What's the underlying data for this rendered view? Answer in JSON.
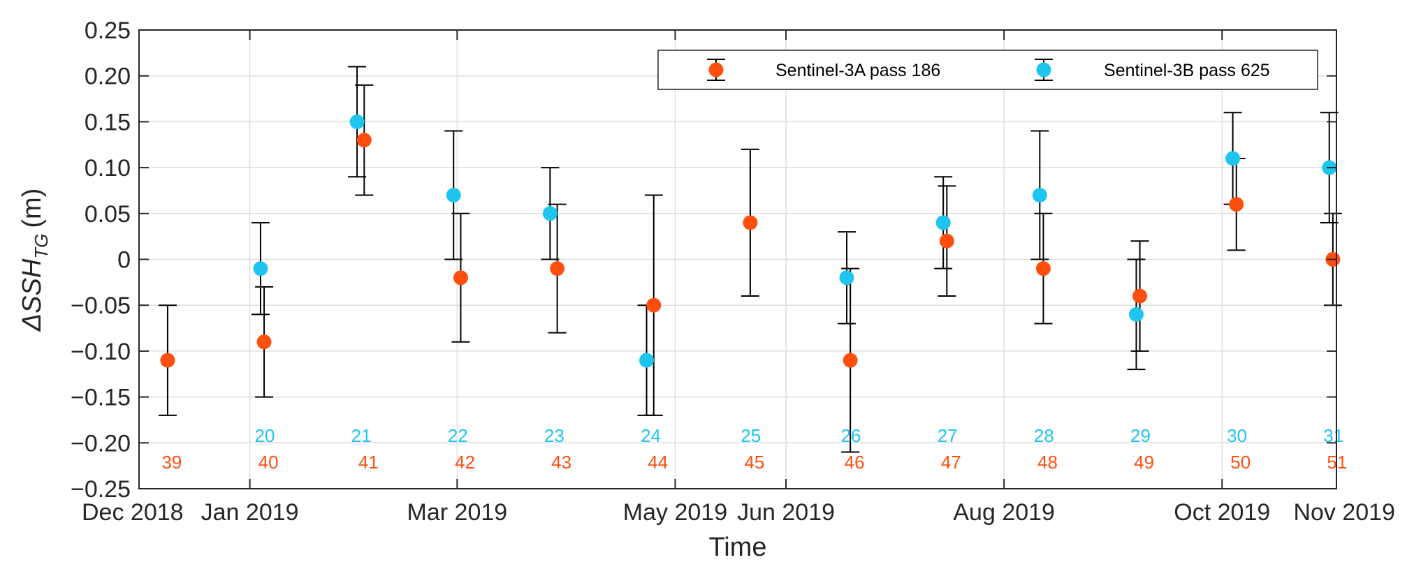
{
  "chart_data": {
    "type": "scatter",
    "title": "",
    "xlabel": "Time",
    "ylabel": {
      "prefix": "ΔSSH",
      "subscript": "TG",
      "unit": "(m)"
    },
    "ylim": [
      -0.25,
      0.25
    ],
    "yticks": [
      -0.25,
      -0.2,
      -0.15,
      -0.1,
      -0.05,
      0,
      0.05,
      0.1,
      0.15,
      0.2,
      0.25
    ],
    "ytick_labels": [
      "−0.25",
      "−0.20",
      "−0.15",
      "−0.10",
      "−0.05",
      "0",
      "0.05",
      "0.10",
      "0.15",
      "0.20",
      "0.25"
    ],
    "xlim": [
      "2018-12-01",
      "2019-11-01"
    ],
    "xticks": [
      "2018-12-01",
      "2019-01-01",
      "2019-02-28",
      "2019-04-30",
      "2019-05-31",
      "2019-07-31",
      "2019-09-30",
      "2019-11-01"
    ],
    "xtick_labels": [
      "Dec 2018",
      "Jan 2019",
      "Mar 2019",
      "May 2019",
      "Jun 2019",
      "Aug 2019",
      "Oct 2019",
      "Nov 2019"
    ],
    "grid": true,
    "legend_position": "top-right",
    "series": [
      {
        "name": "Sentinel-3A pass 186",
        "color": "#FF4F0E",
        "points": [
          {
            "x": "2018-12-09",
            "y": -0.11,
            "lower": -0.17,
            "upper": -0.05,
            "cycle": "39"
          },
          {
            "x": "2019-01-05",
            "y": -0.09,
            "lower": -0.15,
            "upper": -0.03,
            "cycle": "40"
          },
          {
            "x": "2019-02-02",
            "y": 0.13,
            "lower": 0.07,
            "upper": 0.19,
            "cycle": "41"
          },
          {
            "x": "2019-03-01",
            "y": -0.02,
            "lower": -0.09,
            "upper": 0.05,
            "cycle": "42"
          },
          {
            "x": "2019-03-28",
            "y": -0.01,
            "lower": -0.08,
            "upper": 0.06,
            "cycle": "43"
          },
          {
            "x": "2019-04-24",
            "y": -0.05,
            "lower": -0.17,
            "upper": 0.07,
            "cycle": "44"
          },
          {
            "x": "2019-05-21",
            "y": 0.04,
            "lower": -0.04,
            "upper": 0.12,
            "cycle": "45"
          },
          {
            "x": "2019-06-18",
            "y": -0.11,
            "lower": -0.21,
            "upper": -0.01,
            "cycle": "46"
          },
          {
            "x": "2019-07-15",
            "y": 0.02,
            "lower": -0.04,
            "upper": 0.08,
            "cycle": "47"
          },
          {
            "x": "2019-08-11",
            "y": -0.01,
            "lower": -0.07,
            "upper": 0.05,
            "cycle": "48"
          },
          {
            "x": "2019-09-07",
            "y": -0.04,
            "lower": -0.1,
            "upper": 0.02,
            "cycle": "49"
          },
          {
            "x": "2019-10-04",
            "y": 0.06,
            "lower": 0.01,
            "upper": 0.11,
            "cycle": "50"
          },
          {
            "x": "2019-10-31",
            "y": 0.0,
            "lower": -0.05,
            "upper": 0.05,
            "cycle": "51"
          }
        ]
      },
      {
        "name": "Sentinel-3B pass 625",
        "color": "#1FC5EE",
        "points": [
          {
            "x": "2019-01-04",
            "y": -0.01,
            "lower": -0.06,
            "upper": 0.04,
            "cycle": "20"
          },
          {
            "x": "2019-01-31",
            "y": 0.15,
            "lower": 0.09,
            "upper": 0.21,
            "cycle": "21"
          },
          {
            "x": "2019-02-27",
            "y": 0.07,
            "lower": 0.0,
            "upper": 0.14,
            "cycle": "22"
          },
          {
            "x": "2019-03-26",
            "y": 0.05,
            "lower": 0.0,
            "upper": 0.1,
            "cycle": "23"
          },
          {
            "x": "2019-04-22",
            "y": -0.11,
            "lower": -0.17,
            "upper": -0.05,
            "cycle": "24"
          },
          {
            "x": "2019-06-17",
            "y": -0.02,
            "lower": -0.07,
            "upper": 0.03,
            "cycle": "26"
          },
          {
            "x": "2019-07-14",
            "y": 0.04,
            "lower": -0.01,
            "upper": 0.09,
            "cycle": "27"
          },
          {
            "x": "2019-08-10",
            "y": 0.07,
            "lower": 0.0,
            "upper": 0.14,
            "cycle": "28"
          },
          {
            "x": "2019-09-06",
            "y": -0.06,
            "lower": -0.12,
            "upper": 0.0,
            "cycle": "29"
          },
          {
            "x": "2019-10-03",
            "y": 0.11,
            "lower": 0.06,
            "upper": 0.16,
            "cycle": "30"
          },
          {
            "x": "2019-10-30",
            "y": 0.1,
            "lower": 0.04,
            "upper": 0.16,
            "cycle": "31"
          }
        ]
      }
    ],
    "cycle_labels": {
      "Sentinel-3B pass 625": [
        {
          "x": "2019-01-04",
          "text": "20"
        },
        {
          "x": "2019-01-31",
          "text": "21"
        },
        {
          "x": "2019-02-27",
          "text": "22"
        },
        {
          "x": "2019-03-26",
          "text": "23"
        },
        {
          "x": "2019-04-22",
          "text": "24"
        },
        {
          "x": "2019-05-20",
          "text": "25"
        },
        {
          "x": "2019-06-17",
          "text": "26"
        },
        {
          "x": "2019-07-14",
          "text": "27"
        },
        {
          "x": "2019-08-10",
          "text": "28"
        },
        {
          "x": "2019-09-06",
          "text": "29"
        },
        {
          "x": "2019-10-03",
          "text": "30"
        },
        {
          "x": "2019-10-30",
          "text": "31"
        }
      ],
      "Sentinel-3A pass 186": [
        {
          "x": "2018-12-09",
          "text": "39"
        },
        {
          "x": "2019-01-05",
          "text": "40"
        },
        {
          "x": "2019-02-02",
          "text": "41"
        },
        {
          "x": "2019-03-01",
          "text": "42"
        },
        {
          "x": "2019-03-28",
          "text": "43"
        },
        {
          "x": "2019-04-24",
          "text": "44"
        },
        {
          "x": "2019-05-21",
          "text": "45"
        },
        {
          "x": "2019-06-18",
          "text": "46"
        },
        {
          "x": "2019-07-15",
          "text": "47"
        },
        {
          "x": "2019-08-11",
          "text": "48"
        },
        {
          "x": "2019-09-07",
          "text": "49"
        },
        {
          "x": "2019-10-04",
          "text": "50"
        },
        {
          "x": "2019-10-31",
          "text": "51"
        }
      ]
    }
  }
}
